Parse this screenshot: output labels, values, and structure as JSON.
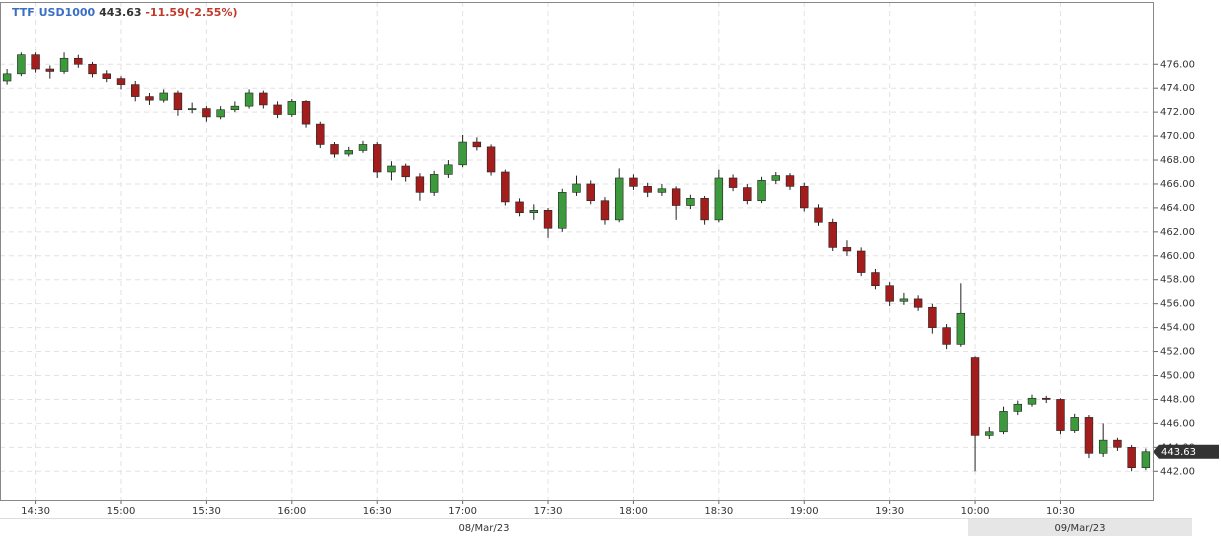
{
  "chart_data": {
    "type": "candlestick",
    "symbol": "TTF USD1000",
    "last": 443.63,
    "change": "-11.59(-2.55%)",
    "session_labels": [
      "08/Mar/23",
      "09/Mar/23"
    ],
    "up_color": "#3c9a3c",
    "down_color": "#a31d1d",
    "grid": true,
    "categories": [
      null,
      null,
      "14:30",
      null,
      null,
      null,
      null,
      null,
      "15:00",
      null,
      null,
      null,
      null,
      null,
      "15:30",
      null,
      null,
      null,
      null,
      null,
      "16:00",
      null,
      null,
      null,
      null,
      null,
      "16:30",
      null,
      null,
      null,
      null,
      null,
      "17:00",
      null,
      null,
      null,
      null,
      null,
      "17:30",
      null,
      null,
      null,
      null,
      null,
      "18:00",
      null,
      null,
      null,
      null,
      null,
      "18:30",
      null,
      null,
      null,
      null,
      null,
      "19:00",
      null,
      null,
      null,
      null,
      null,
      "19:30",
      null,
      null,
      null,
      null,
      null,
      "10:00",
      null,
      null,
      null,
      null,
      null,
      "10:30",
      null,
      null,
      null,
      null,
      null,
      null
    ],
    "open": [
      474.6,
      475.2,
      476.8,
      475.6,
      475.4,
      476.5,
      476.0,
      475.2,
      474.8,
      474.3,
      473.3,
      473.0,
      473.6,
      472.2,
      472.3,
      471.6,
      472.2,
      472.5,
      473.6,
      472.6,
      471.8,
      472.9,
      471.0,
      469.3,
      468.5,
      468.8,
      469.3,
      467.0,
      467.5,
      466.6,
      465.3,
      466.8,
      467.6,
      469.5,
      469.1,
      467.0,
      464.5,
      463.6,
      463.8,
      462.3,
      465.3,
      466.0,
      464.6,
      463.0,
      466.5,
      465.8,
      465.3,
      465.6,
      464.2,
      464.8,
      463.0,
      466.5,
      465.7,
      464.6,
      466.3,
      466.7,
      465.8,
      464.0,
      462.8,
      460.7,
      460.4,
      458.6,
      457.5,
      456.2,
      456.4,
      455.7,
      454.0,
      452.6,
      451.5,
      445.0,
      445.3,
      447.0,
      447.6,
      448.1,
      448.0,
      445.4,
      446.5,
      443.5,
      444.6,
      444.0,
      442.3
    ],
    "high": [
      475.6,
      477.0,
      477.0,
      475.9,
      477.0,
      476.8,
      476.2,
      475.5,
      475.0,
      474.6,
      473.6,
      473.9,
      473.8,
      472.8,
      472.5,
      472.5,
      472.9,
      473.9,
      473.8,
      472.9,
      473.1,
      473.0,
      471.2,
      469.5,
      469.1,
      469.6,
      469.5,
      467.9,
      467.7,
      466.9,
      467.1,
      468.0,
      470.1,
      469.9,
      469.3,
      467.2,
      464.8,
      464.3,
      464.0,
      465.6,
      466.7,
      466.3,
      464.9,
      467.3,
      466.8,
      466.1,
      466.0,
      465.8,
      465.1,
      465.0,
      467.2,
      466.8,
      466.0,
      466.6,
      467.0,
      466.9,
      466.1,
      464.3,
      463.1,
      461.3,
      460.7,
      458.9,
      457.8,
      456.9,
      456.7,
      456.0,
      454.3,
      457.7,
      451.6,
      445.7,
      447.4,
      447.9,
      448.4,
      448.3,
      448.1,
      446.8,
      446.7,
      446.0,
      444.8,
      444.2,
      443.9
    ],
    "low": [
      474.3,
      475.0,
      475.3,
      474.8,
      475.2,
      475.7,
      474.9,
      474.5,
      473.9,
      472.9,
      472.6,
      472.8,
      471.7,
      471.9,
      471.2,
      471.4,
      472.0,
      472.3,
      472.3,
      471.5,
      471.6,
      470.7,
      469.0,
      468.2,
      468.3,
      468.6,
      466.5,
      466.3,
      466.2,
      464.6,
      465.0,
      466.5,
      467.4,
      468.8,
      466.7,
      464.2,
      463.3,
      463.0,
      461.5,
      462.0,
      465.0,
      464.3,
      462.6,
      462.8,
      465.5,
      464.9,
      465.0,
      463.0,
      463.9,
      462.6,
      462.8,
      465.4,
      464.3,
      464.4,
      466.0,
      465.5,
      463.7,
      462.5,
      460.4,
      460.0,
      458.3,
      457.2,
      455.8,
      455.9,
      455.4,
      453.5,
      452.2,
      452.4,
      442.0,
      444.7,
      445.1,
      446.7,
      447.4,
      447.7,
      445.1,
      445.2,
      443.1,
      443.2,
      443.7,
      442.0,
      442.1
    ],
    "close": [
      475.2,
      476.8,
      475.6,
      475.4,
      476.5,
      476.0,
      475.2,
      474.8,
      474.3,
      473.3,
      473.0,
      473.6,
      472.2,
      472.3,
      471.6,
      472.2,
      472.5,
      473.6,
      472.6,
      471.8,
      472.9,
      471.0,
      469.3,
      468.5,
      468.8,
      469.3,
      467.0,
      467.5,
      466.6,
      465.3,
      466.8,
      467.6,
      469.5,
      469.1,
      467.0,
      464.5,
      463.6,
      463.8,
      462.3,
      465.3,
      466.0,
      464.6,
      463.0,
      466.5,
      465.8,
      465.3,
      465.6,
      464.2,
      464.8,
      463.0,
      466.5,
      465.7,
      464.6,
      466.3,
      466.7,
      465.8,
      464.0,
      462.8,
      460.7,
      460.4,
      458.6,
      457.5,
      456.2,
      456.4,
      455.7,
      454.0,
      452.6,
      455.2,
      445.0,
      445.3,
      447.0,
      447.6,
      448.1,
      448.0,
      445.4,
      446.5,
      443.5,
      444.6,
      444.0,
      442.3,
      443.63
    ],
    "ylim": [
      439.6,
      481.2
    ],
    "yticks": [
      {
        "value": 442,
        "label": "442.00"
      },
      {
        "value": 444,
        "label": "444.00"
      },
      {
        "value": 446,
        "label": "446.00"
      },
      {
        "value": 448,
        "label": "448.00"
      },
      {
        "value": 450,
        "label": "450.00"
      },
      {
        "value": 452,
        "label": "452.00"
      },
      {
        "value": 454,
        "label": "454.00"
      },
      {
        "value": 456,
        "label": "456.00"
      },
      {
        "value": 458,
        "label": "458.00"
      },
      {
        "value": 460,
        "label": "460.00"
      },
      {
        "value": 462,
        "label": "462.00"
      },
      {
        "value": 464,
        "label": "464.00"
      },
      {
        "value": 466,
        "label": "466.00"
      },
      {
        "value": 468,
        "label": "468.00"
      },
      {
        "value": 470,
        "label": "470.00"
      },
      {
        "value": 472,
        "label": "472.00"
      },
      {
        "value": 474,
        "label": "474.00"
      },
      {
        "value": 476,
        "label": "476.00"
      }
    ]
  }
}
